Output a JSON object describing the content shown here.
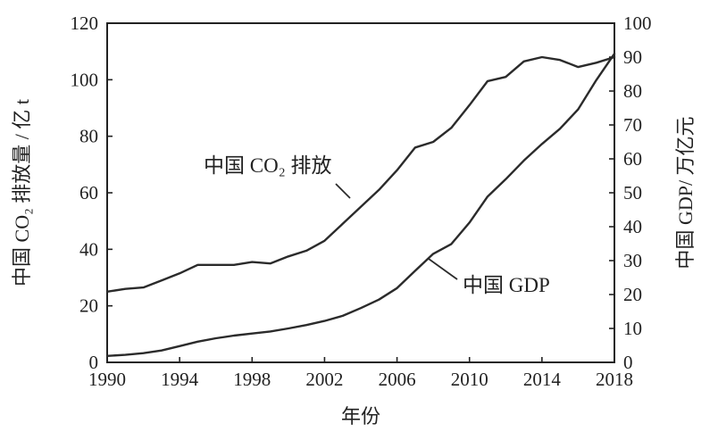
{
  "chart_data": {
    "type": "line",
    "xlabel": "年份",
    "ylabel_left": "中国 CO₂ 排放量 / 亿 t",
    "ylabel_right": "中国 GDP/ 万亿元",
    "xlim": [
      1990,
      2018
    ],
    "ylim_left": [
      0,
      120
    ],
    "ylim_right": [
      0,
      100
    ],
    "xticks": [
      1990,
      1994,
      1998,
      2002,
      2006,
      2010,
      2014,
      2018
    ],
    "yticks_left": [
      0,
      20,
      40,
      60,
      80,
      100,
      120
    ],
    "yticks_right": [
      0,
      10,
      20,
      30,
      40,
      50,
      60,
      70,
      80,
      90,
      100
    ],
    "grid": false,
    "series": [
      {
        "name": "中国 CO₂ 排放",
        "axis": "left",
        "x": [
          1990,
          1991,
          1992,
          1993,
          1994,
          1995,
          1996,
          1997,
          1998,
          1999,
          2000,
          2001,
          2002,
          2003,
          2004,
          2005,
          2006,
          2007,
          2008,
          2009,
          2010,
          2011,
          2012,
          2013,
          2014,
          2015,
          2016,
          2017,
          2018
        ],
        "y": [
          25,
          26,
          26.5,
          29,
          31.5,
          34.5,
          34.5,
          34.5,
          35.5,
          35,
          37.5,
          39.5,
          43,
          49,
          55,
          61,
          68,
          76,
          78,
          83,
          91,
          99.5,
          101,
          106.5,
          108,
          107,
          104.5,
          106,
          108
        ]
      },
      {
        "name": "中国 GDP",
        "axis": "right",
        "x": [
          1990,
          1991,
          1992,
          1993,
          1994,
          1995,
          1996,
          1997,
          1998,
          1999,
          2000,
          2001,
          2002,
          2003,
          2004,
          2005,
          2006,
          2007,
          2008,
          2009,
          2010,
          2011,
          2012,
          2013,
          2014,
          2015,
          2016,
          2017,
          2018
        ],
        "y": [
          1.9,
          2.2,
          2.7,
          3.5,
          4.8,
          6.1,
          7.1,
          7.9,
          8.5,
          9.1,
          10.0,
          11.0,
          12.2,
          13.7,
          16.0,
          18.5,
          21.9,
          27.0,
          32.0,
          34.9,
          41.2,
          48.9,
          54.0,
          59.5,
          64.4,
          68.9,
          74.6,
          83.2,
          91.0
        ]
      }
    ]
  }
}
